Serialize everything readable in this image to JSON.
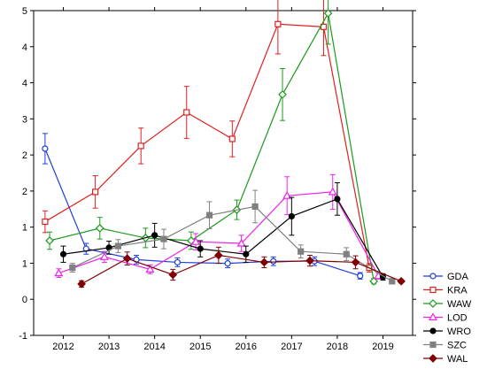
{
  "chart_data": {
    "type": "line",
    "title": "",
    "xlabel": "",
    "ylabel": "",
    "x_ticks": [
      "2012",
      "2013",
      "2014",
      "2015",
      "2016",
      "2017",
      "2018",
      "2019"
    ],
    "y_tick_labels": [
      "-1",
      "0",
      "1",
      "1",
      "2",
      "2",
      "3",
      "4",
      "4",
      "5"
    ],
    "ylim": [
      -1,
      5
    ],
    "grid": false,
    "legend_position": "bottom-right",
    "series": [
      {
        "name": "GDA",
        "color": "#1f3fd9",
        "marker": "circle-open",
        "x": [
          2011.6,
          2012.5,
          2013.6,
          2014.5,
          2015.6,
          2016.6,
          2017.5,
          2018.5
        ],
        "y": [
          2.45,
          0.6,
          0.4,
          0.35,
          0.33,
          0.37,
          0.37,
          0.1
        ],
        "err": [
          0.28,
          0.1,
          0.08,
          0.08,
          0.08,
          0.08,
          0.08,
          0.06
        ]
      },
      {
        "name": "KRA",
        "color": "#e02020",
        "marker": "square-open",
        "x": [
          2011.6,
          2012.7,
          2013.7,
          2014.7,
          2015.7,
          2016.7,
          2017.7,
          2018.7
        ],
        "y": [
          1.1,
          1.65,
          2.5,
          3.12,
          2.63,
          4.75,
          4.7,
          0.25
        ],
        "err": [
          0.2,
          0.3,
          0.33,
          0.48,
          0.33,
          0.55,
          0.53,
          0.08
        ]
      },
      {
        "name": "WAW",
        "color": "#1b9a1b",
        "marker": "diamond-open",
        "x": [
          2011.7,
          2012.8,
          2013.8,
          2014.8,
          2015.8,
          2016.8,
          2017.8,
          2018.8
        ],
        "y": [
          0.75,
          0.98,
          0.8,
          0.75,
          1.32,
          3.45,
          4.95,
          0.0
        ],
        "err": [
          0.16,
          0.2,
          0.18,
          0.16,
          0.18,
          0.48,
          0.57,
          0.05
        ]
      },
      {
        "name": "LOD",
        "color": "#ee22ee",
        "marker": "triangle-open",
        "x": [
          2011.9,
          2012.9,
          2013.9,
          2014.9,
          2015.9,
          2016.9,
          2017.9,
          2018.9
        ],
        "y": [
          0.15,
          0.45,
          0.22,
          0.73,
          0.7,
          1.58,
          1.65,
          0.1
        ],
        "err": [
          0.08,
          0.1,
          0.08,
          0.15,
          0.15,
          0.35,
          0.32,
          0.06
        ]
      },
      {
        "name": "WRO",
        "color": "#000000",
        "marker": "circle-filled",
        "x": [
          2012.0,
          2013.0,
          2014.0,
          2015.0,
          2016.0,
          2017.0,
          2018.0,
          2019.0
        ],
        "y": [
          0.5,
          0.62,
          0.85,
          0.6,
          0.5,
          1.2,
          1.52,
          0.08
        ],
        "err": [
          0.15,
          0.12,
          0.22,
          0.15,
          0.15,
          0.35,
          0.3,
          0.06
        ]
      },
      {
        "name": "SZC",
        "color": "#808080",
        "marker": "square-filled",
        "x": [
          2012.2,
          2013.2,
          2014.2,
          2015.2,
          2016.2,
          2017.2,
          2018.2,
          2019.2
        ],
        "y": [
          0.25,
          0.65,
          0.78,
          1.22,
          1.38,
          0.55,
          0.5,
          0.0
        ],
        "err": [
          0.08,
          0.12,
          0.18,
          0.25,
          0.3,
          0.12,
          0.12,
          0.05
        ]
      },
      {
        "name": "WAL",
        "color": "#800000",
        "marker": "diamond-filled",
        "x": [
          2012.4,
          2013.4,
          2014.4,
          2015.4,
          2016.4,
          2017.4,
          2018.4,
          2019.4
        ],
        "y": [
          -0.05,
          0.42,
          0.12,
          0.48,
          0.35,
          0.38,
          0.35,
          0.0
        ],
        "err": [
          0.06,
          0.12,
          0.1,
          0.15,
          0.1,
          0.1,
          0.12,
          0.03
        ]
      }
    ]
  }
}
